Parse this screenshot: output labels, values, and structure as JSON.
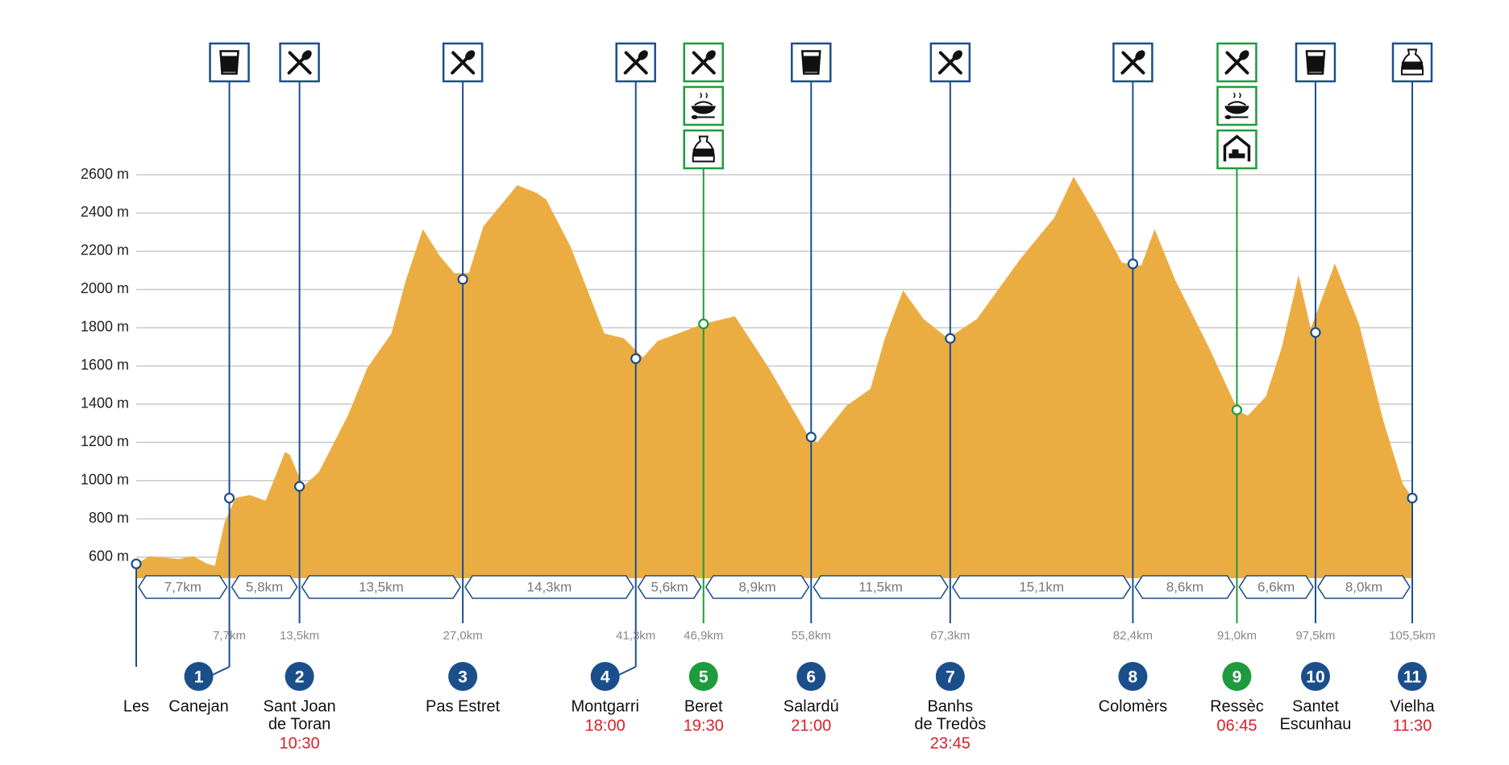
{
  "chart_data": {
    "type": "area",
    "color": "#ebad42",
    "xlim": [
      0,
      105.5
    ],
    "ylim": [
      490,
      2600
    ],
    "grid": true,
    "yticks": [
      {
        "value": 600,
        "label": "600 m"
      },
      {
        "value": 800,
        "label": "800 m"
      },
      {
        "value": 1000,
        "label": "1000 m"
      },
      {
        "value": 1200,
        "label": "1200 m"
      },
      {
        "value": 1400,
        "label": "1400 m"
      },
      {
        "value": 1600,
        "label": "1600 m"
      },
      {
        "value": 1800,
        "label": "1800 m"
      },
      {
        "value": 2000,
        "label": "2000 m"
      },
      {
        "value": 2200,
        "label": "2200 m"
      },
      {
        "value": 2400,
        "label": "2400 m"
      },
      {
        "value": 2600,
        "label": "2600 m"
      }
    ],
    "x": [
      0,
      1.1,
      3.5,
      4.7,
      5.9,
      6.5,
      7.3,
      8.2,
      9.4,
      10.7,
      12.3,
      12.7,
      13.8,
      15.1,
      17.5,
      19.1,
      21.1,
      22.3,
      23.7,
      25.1,
      26.3,
      27.5,
      28.7,
      31.5,
      33.1,
      33.9,
      35.9,
      38.7,
      40.3,
      41.9,
      43.1,
      46.9,
      49.5,
      52.3,
      55.6,
      56.3,
      58.7,
      60.7,
      61.9,
      63.4,
      65.1,
      67.1,
      69.5,
      73.1,
      75.9,
      77.5,
      79.5,
      81.5,
      83.1,
      84.2,
      85.9,
      88.7,
      91.1,
      91.9,
      93.4,
      94.7,
      96.1,
      97.1,
      99.1,
      101.1,
      103.1,
      104.7,
      105.5
    ],
    "values": [
      565,
      605,
      590,
      605,
      565,
      555,
      780,
      910,
      925,
      895,
      1150,
      1135,
      970,
      1045,
      1340,
      1590,
      1770,
      2050,
      2315,
      2175,
      2085,
      2085,
      2330,
      2545,
      2505,
      2470,
      2225,
      1770,
      1745,
      1645,
      1730,
      1820,
      1860,
      1590,
      1230,
      1200,
      1390,
      1480,
      1745,
      1995,
      1845,
      1745,
      1845,
      2160,
      2375,
      2590,
      2375,
      2140,
      2125,
      2315,
      2050,
      1695,
      1365,
      1340,
      1440,
      1695,
      2075,
      1795,
      2135,
      1820,
      1315,
      985,
      910
    ],
    "segments": [
      "7,7km",
      "5,8km",
      "13,5km",
      "14,3km",
      "5,6km",
      "8,9km",
      "11,5km",
      "15,1km",
      "8,6km",
      "6,6km",
      "8,0km"
    ],
    "checkpoints": [
      {
        "name": [
          "Les"
        ],
        "km": 0,
        "elevation": 565,
        "color": "#1b4f8c"
      },
      {
        "number": 1,
        "name": [
          "Canejan"
        ],
        "km": {
          "value": 7.7,
          "label": "7,7km"
        },
        "elevation": 909,
        "color": "#1b4f8c"
      },
      {
        "number": 2,
        "name": [
          "Sant Joan",
          "de Toran"
        ],
        "time": "10:30",
        "km": {
          "value": 13.5,
          "label": "13,5km"
        },
        "elevation": 970,
        "color": "#1b4f8c"
      },
      {
        "number": 3,
        "name": [
          "Pas Estret"
        ],
        "km": {
          "value": 27.0,
          "label": "27,0km"
        },
        "elevation": 2053,
        "color": "#1b4f8c"
      },
      {
        "number": 4,
        "name": [
          "Montgarri"
        ],
        "time": "18:00",
        "km": {
          "value": 41.3,
          "label": "41,3km"
        },
        "elevation": 1638,
        "color": "#1b4f8c"
      },
      {
        "number": 5,
        "name": [
          "Beret"
        ],
        "time": "19:30",
        "km": {
          "value": 46.9,
          "label": "46,9km"
        },
        "elevation": 1820,
        "color": "#1e9b3c"
      },
      {
        "number": 6,
        "name": [
          "Salardú"
        ],
        "time": "21:00",
        "km": {
          "value": 55.8,
          "label": "55,8km"
        },
        "elevation": 1228,
        "color": "#1b4f8c"
      },
      {
        "number": 7,
        "name": [
          "Banhs",
          "de Tredòs"
        ],
        "time": "23:45",
        "km": {
          "value": 67.3,
          "label": "67,3km"
        },
        "elevation": 1744,
        "color": "#1b4f8c"
      },
      {
        "number": 8,
        "name": [
          "Colomèrs"
        ],
        "km": {
          "value": 82.4,
          "label": "82,4km"
        },
        "elevation": 2134,
        "color": "#1b4f8c"
      },
      {
        "number": 9,
        "name": [
          "Ressèc"
        ],
        "time": "06:45",
        "km": {
          "value": 91.0,
          "label": "91,0km"
        },
        "elevation": 1370,
        "color": "#1e9b3c"
      },
      {
        "number": 10,
        "name": [
          "Santet",
          "Escunhau"
        ],
        "km": {
          "value": 97.5,
          "label": "97,5km"
        },
        "elevation": 1775,
        "color": "#1b4f8c"
      },
      {
        "number": 11,
        "name": [
          "Vielha"
        ],
        "time": "11:30",
        "km": {
          "value": 105.5,
          "label": "105,5km"
        },
        "elevation": 909,
        "color": "#1b4f8c"
      }
    ]
  }
}
